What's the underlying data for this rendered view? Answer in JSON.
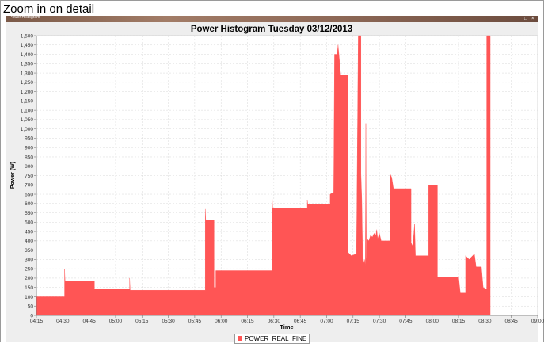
{
  "caption": "Zoom in on detail",
  "window": {
    "title": "Power Histogram",
    "controls": [
      "_",
      "□",
      "×"
    ]
  },
  "colors": {
    "series": "#ff5555",
    "plot_bg": "#ffffff",
    "grid": "#d8d8d8",
    "panel_bg": "#eeeeee"
  },
  "chart_data": {
    "type": "area",
    "title": "Power Histogram Tuesday 03/12/2013",
    "xlabel": "Time",
    "ylabel": "Power (W)",
    "ylim": [
      0,
      1500
    ],
    "xlim": [
      "04:15",
      "09:00"
    ],
    "grid": true,
    "legend": "bottom-center",
    "x_ticks": [
      "04:15",
      "04:30",
      "04:45",
      "05:00",
      "05:15",
      "05:30",
      "05:45",
      "06:00",
      "06:15",
      "06:30",
      "06:45",
      "07:00",
      "07:15",
      "07:30",
      "07:45",
      "08:00",
      "08:15",
      "08:30",
      "08:45",
      "09:00"
    ],
    "y_ticks": [
      "0",
      "50",
      "100",
      "150",
      "200",
      "250",
      "300",
      "350",
      "400",
      "450",
      "500",
      "550",
      "600",
      "650",
      "700",
      "750",
      "800",
      "850",
      "900",
      "950",
      "1,000",
      "1,050",
      "1,100",
      "1,150",
      "1,200",
      "1,250",
      "1,300",
      "1,350",
      "1,400",
      "1,450",
      "1,500"
    ],
    "series": [
      {
        "name": "POWER_REAL_FINE",
        "color": "#ff5555",
        "points": [
          [
            "04:15",
            100
          ],
          [
            "04:31",
            100
          ],
          [
            "04:31",
            250
          ],
          [
            "04:31.3",
            185
          ],
          [
            "04:48",
            185
          ],
          [
            "04:48",
            140
          ],
          [
            "05:08",
            140
          ],
          [
            "05:08",
            200
          ],
          [
            "05:08.3",
            135
          ],
          [
            "05:51",
            135
          ],
          [
            "05:51",
            570
          ],
          [
            "05:51.3",
            510
          ],
          [
            "05:56",
            510
          ],
          [
            "05:56",
            150
          ],
          [
            "05:57",
            150
          ],
          [
            "05:57",
            240
          ],
          [
            "06:29",
            240
          ],
          [
            "06:29",
            640
          ],
          [
            "06:29.3",
            575
          ],
          [
            "06:49",
            575
          ],
          [
            "06:49",
            620
          ],
          [
            "06:49.3",
            595
          ],
          [
            "07:02",
            595
          ],
          [
            "07:02",
            650
          ],
          [
            "07:04",
            660
          ],
          [
            "07:04.5",
            1400
          ],
          [
            "07:06",
            1400
          ],
          [
            "07:06.5",
            1450
          ],
          [
            "07:07",
            1400
          ],
          [
            "07:08",
            1290
          ],
          [
            "07:12",
            1290
          ],
          [
            "07:12",
            340
          ],
          [
            "07:13",
            330
          ],
          [
            "07:14",
            320
          ],
          [
            "07:17",
            330
          ],
          [
            "07:17",
            360
          ],
          [
            "07:18",
            1500
          ],
          [
            "07:19.5",
            1500
          ],
          [
            "07:19.5",
            760
          ],
          [
            "07:20",
            620
          ],
          [
            "07:20.5",
            300
          ],
          [
            "07:21",
            280
          ],
          [
            "07:21.5",
            300
          ],
          [
            "07:22",
            270
          ],
          [
            "07:22.3",
            1030
          ],
          [
            "07:22.6",
            300
          ],
          [
            "07:23",
            320
          ],
          [
            "07:23",
            410
          ],
          [
            "07:24",
            400
          ],
          [
            "07:25",
            430
          ],
          [
            "07:26",
            420
          ],
          [
            "07:27",
            440
          ],
          [
            "07:28",
            430
          ],
          [
            "07:28.5",
            460
          ],
          [
            "07:29",
            410
          ],
          [
            "07:30",
            440
          ],
          [
            "07:31",
            400
          ],
          [
            "07:36",
            400
          ],
          [
            "07:36",
            760
          ],
          [
            "07:37",
            740
          ],
          [
            "07:38",
            680
          ],
          [
            "07:48",
            680
          ],
          [
            "07:48",
            390
          ],
          [
            "07:49",
            370
          ],
          [
            "07:50",
            490
          ],
          [
            "07:50.5",
            320
          ],
          [
            "07:58",
            320
          ],
          [
            "07:58",
            700
          ],
          [
            "08:03",
            700
          ],
          [
            "08:03",
            205
          ],
          [
            "08:15",
            205
          ],
          [
            "08:15",
            210
          ],
          [
            "08:16",
            120
          ],
          [
            "08:19",
            120
          ],
          [
            "08:19",
            320
          ],
          [
            "08:20",
            310
          ],
          [
            "08:21",
            300
          ],
          [
            "08:22",
            310
          ],
          [
            "08:23",
            320
          ],
          [
            "08:24",
            330
          ],
          [
            "08:25",
            260
          ],
          [
            "08:28",
            260
          ],
          [
            "08:29",
            150
          ],
          [
            "08:31",
            140
          ],
          [
            "08:31",
            1500
          ],
          [
            "08:33",
            1500
          ]
        ]
      }
    ]
  }
}
